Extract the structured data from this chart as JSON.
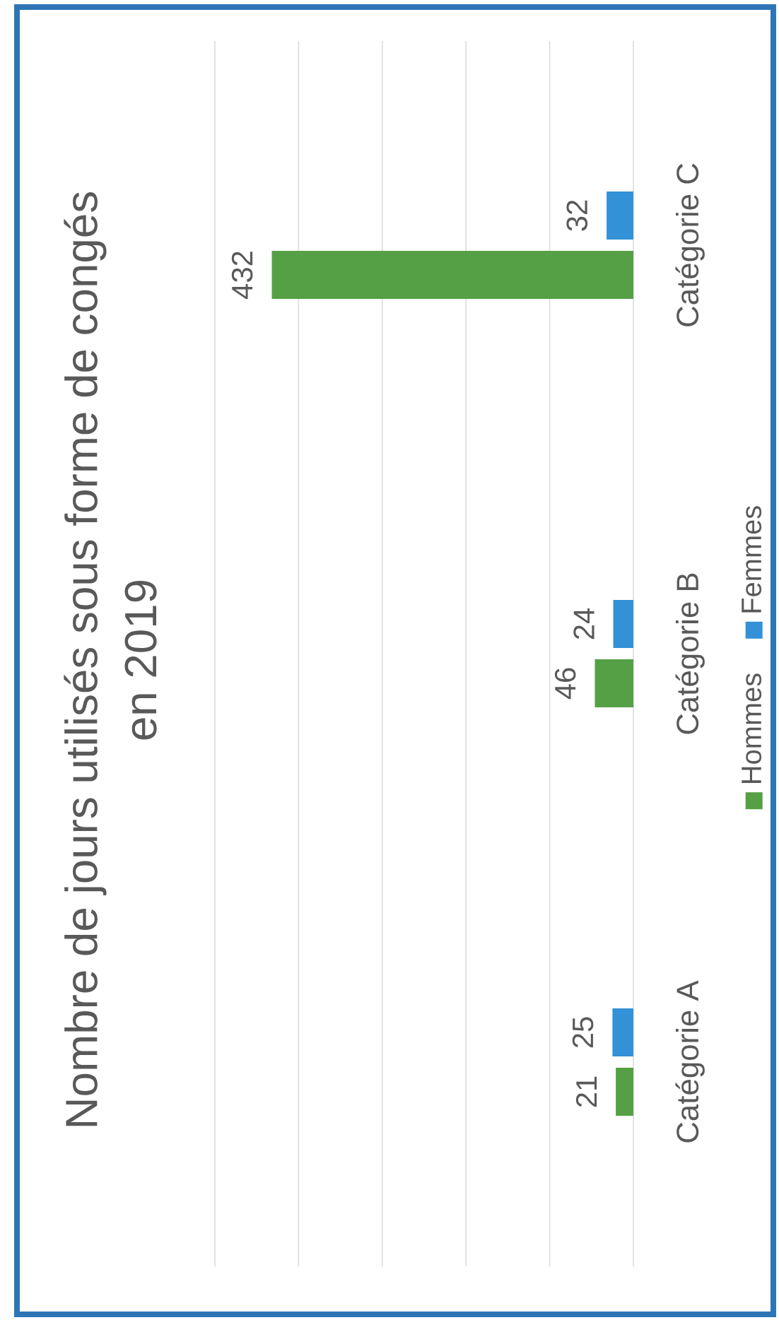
{
  "chart_data": {
    "type": "bar",
    "orientation": "horizontal",
    "title": "Nombre de jours utilisés sous forme de congés en 2019",
    "categories": [
      "Catégorie C",
      "Catégorie B",
      "Catégorie A"
    ],
    "series": [
      {
        "name": "Hommes",
        "color": "#55a045",
        "values": [
          432,
          46,
          21
        ]
      },
      {
        "name": "Femmes",
        "color": "#3391d8",
        "values": [
          32,
          24,
          25
        ]
      }
    ],
    "xlim": [
      500,
      0
    ],
    "xticks": [
      {
        "value": 0,
        "label": null
      },
      {
        "value": 100,
        "label": null
      },
      {
        "value": 200,
        "label": null
      },
      {
        "value": 300,
        "label": null
      },
      {
        "value": 400,
        "label": null
      },
      {
        "value": 500,
        "label": null
      }
    ],
    "grid": "x",
    "legend": "right",
    "tick_labels": "y",
    "data_labels": true
  }
}
